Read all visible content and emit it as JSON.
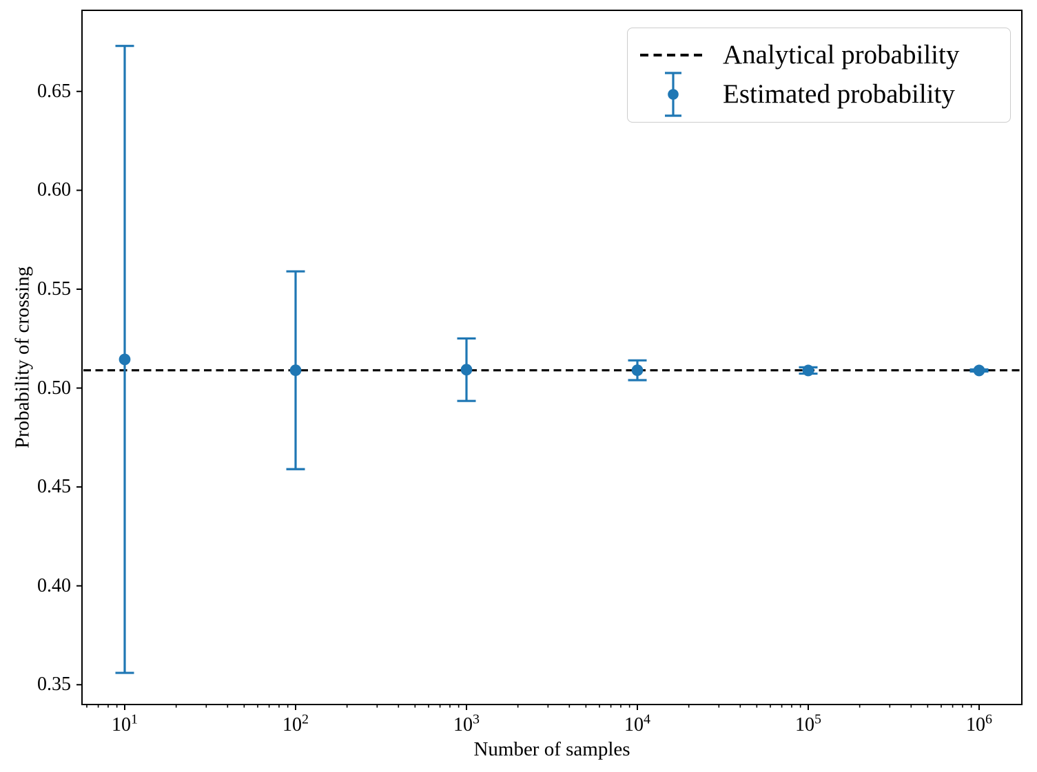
{
  "figure": {
    "background": "#ffffff"
  },
  "chart_data": {
    "type": "errorbar",
    "title": "",
    "xlabel": "Number of samples",
    "ylabel": "Probability of crossing",
    "x_scale": "log",
    "xlim_log10": [
      0.75,
      6.25
    ],
    "ylim": [
      0.34,
      0.691
    ],
    "grid": false,
    "legend_position": "upper right",
    "axis_color": "#000000",
    "y_ticks": [
      0.35,
      0.4,
      0.45,
      0.5,
      0.55,
      0.6,
      0.65
    ],
    "x_ticks": [
      {
        "value": 10,
        "base": "10",
        "exp": "1"
      },
      {
        "value": 100,
        "base": "10",
        "exp": "2"
      },
      {
        "value": 1000,
        "base": "10",
        "exp": "3"
      },
      {
        "value": 10000,
        "base": "10",
        "exp": "4"
      },
      {
        "value": 100000,
        "base": "10",
        "exp": "5"
      },
      {
        "value": 1000000,
        "base": "10",
        "exp": "6"
      }
    ],
    "series": [
      {
        "name": "Analytical probability",
        "type": "hline",
        "y": 0.509,
        "color": "#000000",
        "linestyle": "dashed"
      },
      {
        "name": "Estimated probability",
        "type": "errorbar",
        "color": "#1f77b4",
        "x": [
          10,
          100,
          1000,
          10000,
          100000,
          1000000
        ],
        "y": [
          0.5145,
          0.509,
          0.5093,
          0.509,
          0.5089,
          0.5089
        ],
        "yerr": [
          0.1585,
          0.05,
          0.0158,
          0.005,
          0.0016,
          0.0005
        ]
      }
    ]
  },
  "legend": {
    "items": [
      {
        "label": "Analytical probability"
      },
      {
        "label": "Estimated probability"
      }
    ]
  }
}
